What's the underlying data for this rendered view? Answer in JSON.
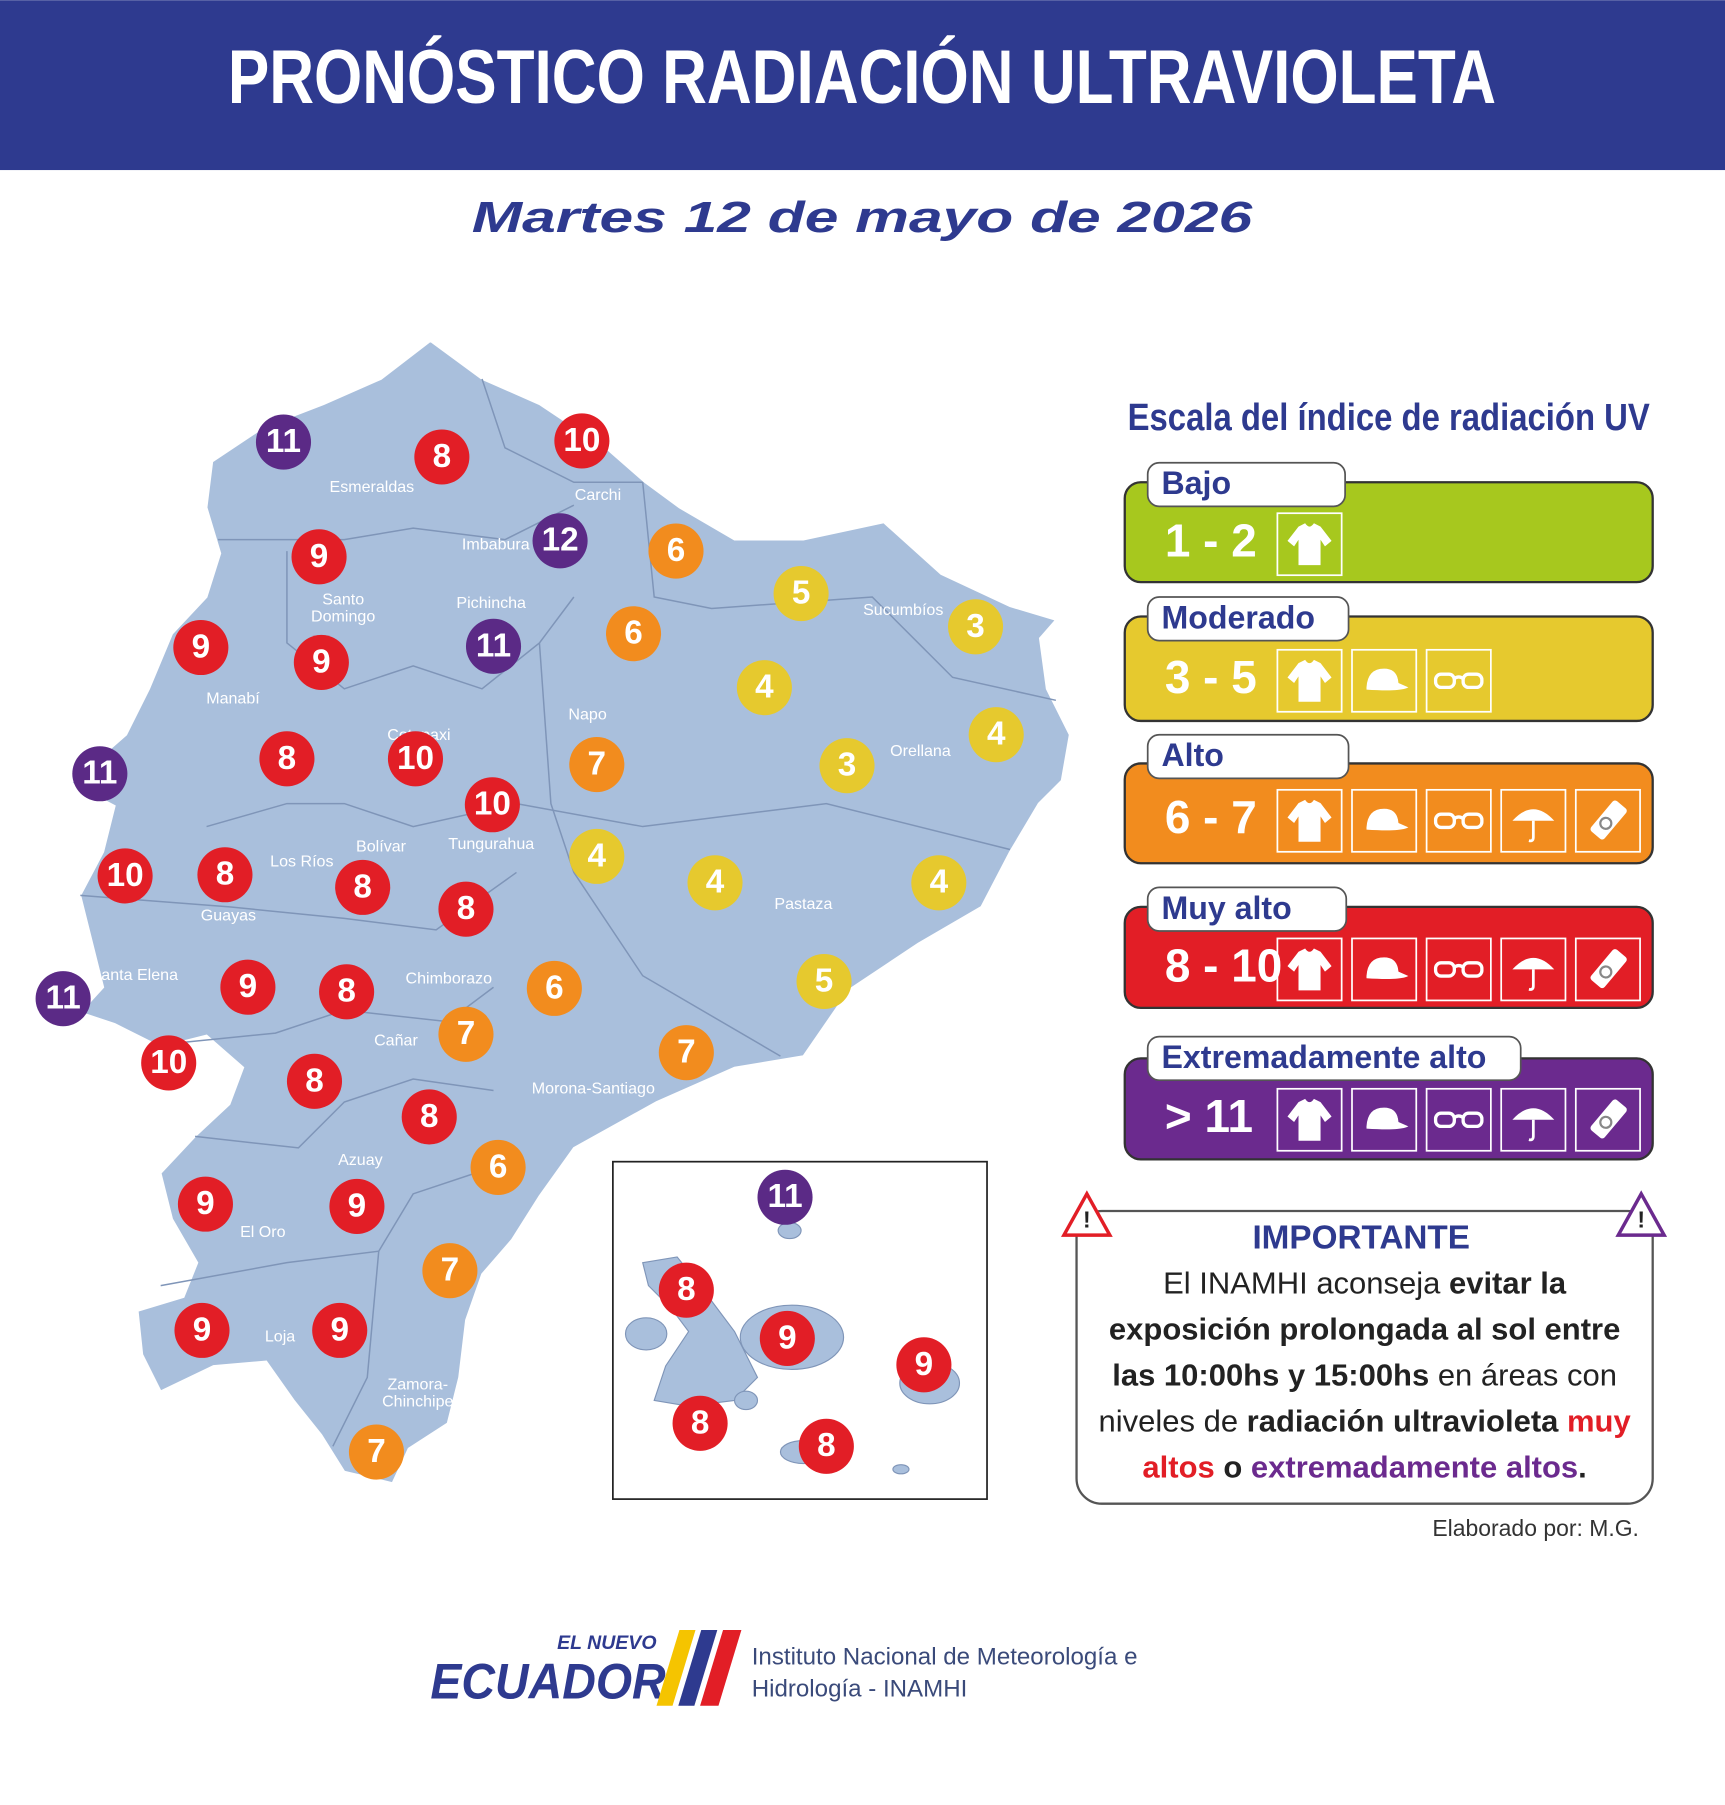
{
  "header": {
    "title": "PRONÓSTICO RADIACIÓN ULTRAVIOLETA",
    "date": "Martes 12 de mayo de 2026"
  },
  "map": {
    "provinces": [
      "Esmeraldas",
      "Carchi",
      "Imbabura",
      "Santo Domingo",
      "Pichincha",
      "Manabí",
      "Napo",
      "Sucumbíos",
      "Orellana",
      "Cotopaxi",
      "Bolívar",
      "Tungurahua",
      "Los Ríos",
      "Guayas",
      "Pastaza",
      "Santa Elena",
      "Chimborazo",
      "Cañar",
      "Morona-Santiago",
      "Azuay",
      "El Oro",
      "Loja",
      "Zamora-Chinchipe"
    ],
    "markers": [
      {
        "value": 11,
        "color": "#5b2a86"
      },
      {
        "value": 8,
        "color": "#e21e26"
      },
      {
        "value": 10,
        "color": "#e21e26"
      },
      {
        "value": 12,
        "color": "#5b2a86"
      },
      {
        "value": 6,
        "color": "#f28c1e"
      },
      {
        "value": 9,
        "color": "#e21e26"
      },
      {
        "value": 5,
        "color": "#e6c92e"
      },
      {
        "value": 3,
        "color": "#e6c92e"
      },
      {
        "value": 6,
        "color": "#f28c1e"
      },
      {
        "value": 11,
        "color": "#5b2a86"
      },
      {
        "value": 9,
        "color": "#e21e26"
      },
      {
        "value": 9,
        "color": "#e21e26"
      },
      {
        "value": 4,
        "color": "#e6c92e"
      },
      {
        "value": 4,
        "color": "#e6c92e"
      },
      {
        "value": 11,
        "color": "#5b2a86"
      },
      {
        "value": 8,
        "color": "#e21e26"
      },
      {
        "value": 10,
        "color": "#e21e26"
      },
      {
        "value": 7,
        "color": "#f28c1e"
      },
      {
        "value": 3,
        "color": "#e6c92e"
      },
      {
        "value": 10,
        "color": "#e21e26"
      },
      {
        "value": 10,
        "color": "#e21e26"
      },
      {
        "value": 8,
        "color": "#e21e26"
      },
      {
        "value": 8,
        "color": "#e21e26"
      },
      {
        "value": 4,
        "color": "#e6c92e"
      },
      {
        "value": 4,
        "color": "#e6c92e"
      },
      {
        "value": 4,
        "color": "#e6c92e"
      },
      {
        "value": 8,
        "color": "#e21e26"
      },
      {
        "value": 11,
        "color": "#5b2a86"
      },
      {
        "value": 9,
        "color": "#e21e26"
      },
      {
        "value": 8,
        "color": "#e21e26"
      },
      {
        "value": 6,
        "color": "#f28c1e"
      },
      {
        "value": 5,
        "color": "#e6c92e"
      },
      {
        "value": 7,
        "color": "#f28c1e"
      },
      {
        "value": 10,
        "color": "#e21e26"
      },
      {
        "value": 7,
        "color": "#f28c1e"
      },
      {
        "value": 8,
        "color": "#e21e26"
      },
      {
        "value": 8,
        "color": "#e21e26"
      },
      {
        "value": 6,
        "color": "#f28c1e"
      },
      {
        "value": 9,
        "color": "#e21e26"
      },
      {
        "value": 9,
        "color": "#e21e26"
      },
      {
        "value": 7,
        "color": "#f28c1e"
      },
      {
        "value": 9,
        "color": "#e21e26"
      },
      {
        "value": 9,
        "color": "#e21e26"
      },
      {
        "value": 7,
        "color": "#f28c1e"
      }
    ],
    "galapagos_markers": [
      {
        "value": 11,
        "color": "#5b2a86"
      },
      {
        "value": 8,
        "color": "#e21e26"
      },
      {
        "value": 9,
        "color": "#e21e26"
      },
      {
        "value": 9,
        "color": "#e21e26"
      },
      {
        "value": 8,
        "color": "#e21e26"
      },
      {
        "value": 8,
        "color": "#e21e26"
      }
    ]
  },
  "legend": {
    "title": "Escala del índice de radiación UV",
    "levels": [
      {
        "name": "Bajo",
        "range": "1 - 2",
        "color": "#a7c81e"
      },
      {
        "name": "Moderado",
        "range": "3 - 5",
        "color": "#e6c92e"
      },
      {
        "name": "Alto",
        "range": "6 - 7",
        "color": "#f28c1e"
      },
      {
        "name": "Muy alto",
        "range": "8 - 10",
        "color": "#e21e26"
      },
      {
        "name": "Extremadamente alto",
        "range": "> 11",
        "color": "#6b2a8e"
      }
    ]
  },
  "notice": {
    "title": "IMPORTANTE",
    "segments": [
      {
        "text": "El INAMHI aconseja "
      },
      {
        "text": "evitar la exposición prolongada al sol entre las 10:00hs y 15:00hs",
        "bold": true
      },
      {
        "text": " en áreas con niveles de "
      },
      {
        "text": "radiación ultravioleta ",
        "bold": true
      },
      {
        "text": "muy altos",
        "bold": true,
        "color": "#e21e26"
      },
      {
        "text": " o ",
        "bold": true
      },
      {
        "text": "extremadamente altos",
        "bold": true,
        "color": "#6b2a8e"
      },
      {
        "text": ".",
        "bold": true
      }
    ]
  },
  "credit": "Elaborado por: M.G.",
  "footer": {
    "brand_top": "EL NUEVO",
    "brand": "ECUADOR",
    "institute": [
      "Instituto Nacional de Meteorología e",
      "Hidrología - INAMHI"
    ]
  }
}
